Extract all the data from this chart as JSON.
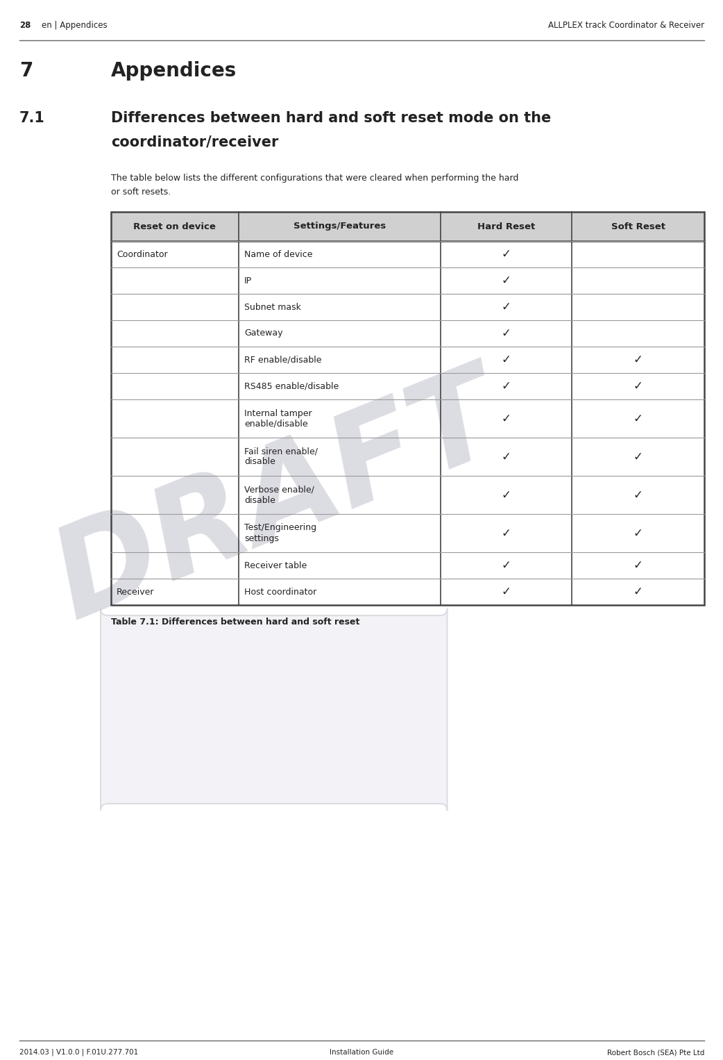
{
  "page_number": "28",
  "header_left": "en | Appendices",
  "header_right": "ALLPLEX track Coordinator & Receiver",
  "footer_left": "2014.03 | V1.0.0 | F.01U.277.701",
  "footer_center": "Installation Guide",
  "footer_right": "Robert Bosch (SEA) Pte Ltd",
  "section_number": "7",
  "section_title": "Appendices",
  "subsection_number": "7.1",
  "subsection_title_line1": "Differences between hard and soft reset mode on the",
  "subsection_title_line2": "coordinator/receiver",
  "body_text_line1": "The table below lists the different configurations that were cleared when performing the hard",
  "body_text_line2": "or soft resets.",
  "table_caption": "Table 7.1: Differences between hard and soft reset",
  "table_headers": [
    "Reset on device",
    "Settings/Features",
    "Hard Reset",
    "Soft Reset"
  ],
  "table_rows": [
    [
      "Coordinator",
      "Name of device",
      true,
      false
    ],
    [
      "",
      "IP",
      true,
      false
    ],
    [
      "",
      "Subnet mask",
      true,
      false
    ],
    [
      "",
      "Gateway",
      true,
      false
    ],
    [
      "",
      "RF enable/disable",
      true,
      true
    ],
    [
      "",
      "RS485 enable/disable",
      true,
      true
    ],
    [
      "",
      "Internal tamper\nenable/disable",
      true,
      true
    ],
    [
      "",
      "Fail siren enable/\ndisable",
      true,
      true
    ],
    [
      "",
      "Verbose enable/\ndisable",
      true,
      true
    ],
    [
      "",
      "Test/Engineering\nsettings",
      true,
      true
    ],
    [
      "",
      "Receiver table",
      true,
      true
    ],
    [
      "Receiver",
      "Host coordinator",
      true,
      true
    ]
  ],
  "draft_text": "DRAFT",
  "draft_color": "#c0c0cc",
  "background_color": "#ffffff",
  "table_header_bg": "#d0d0d0",
  "table_border_color": "#444444",
  "table_inner_border": "#999999",
  "text_color": "#222222",
  "header_line_color": "#666666",
  "draft_outline_color": "#b0b0be"
}
